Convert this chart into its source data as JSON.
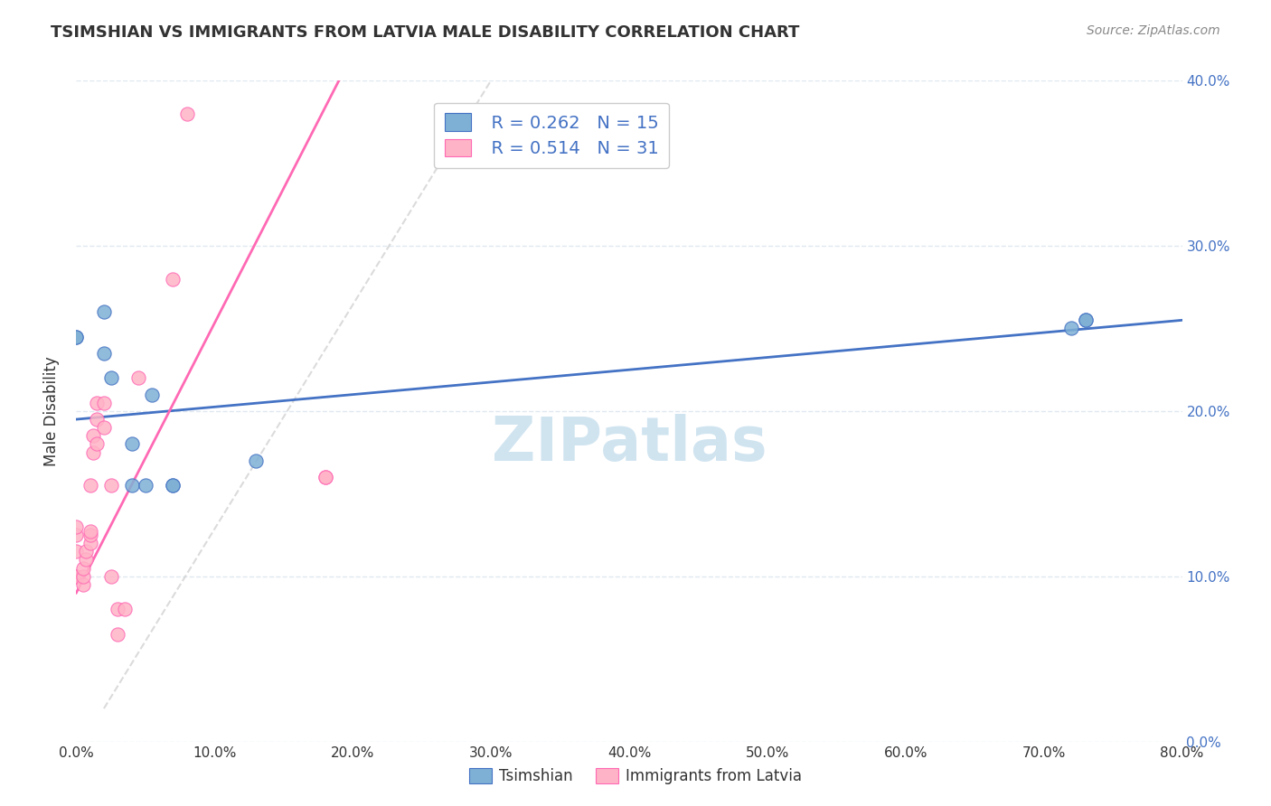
{
  "title": "TSIMSHIAN VS IMMIGRANTS FROM LATVIA MALE DISABILITY CORRELATION CHART",
  "source": "Source: ZipAtlas.com",
  "xlabel": "",
  "ylabel": "Male Disability",
  "xlim": [
    0,
    0.8
  ],
  "ylim": [
    0,
    0.4
  ],
  "xticks": [
    0.0,
    0.1,
    0.2,
    0.3,
    0.4,
    0.5,
    0.6,
    0.7,
    0.8
  ],
  "yticks": [
    0.0,
    0.1,
    0.2,
    0.3,
    0.4
  ],
  "blue_R": 0.262,
  "blue_N": 15,
  "pink_R": 0.514,
  "pink_N": 31,
  "blue_color": "#7EB0D5",
  "pink_color": "#FFB3C6",
  "blue_line_color": "#4472C4",
  "pink_line_color": "#FF69B4",
  "tsimshian_points_x": [
    0.0,
    0.0,
    0.02,
    0.02,
    0.025,
    0.04,
    0.04,
    0.05,
    0.055,
    0.07,
    0.07,
    0.13,
    0.72,
    0.73,
    0.73
  ],
  "tsimshian_points_y": [
    0.245,
    0.245,
    0.235,
    0.26,
    0.22,
    0.18,
    0.155,
    0.155,
    0.21,
    0.155,
    0.155,
    0.17,
    0.25,
    0.255,
    0.255
  ],
  "latvia_points_x": [
    0.0,
    0.0,
    0.0,
    0.0,
    0.0,
    0.005,
    0.005,
    0.005,
    0.007,
    0.007,
    0.01,
    0.01,
    0.01,
    0.01,
    0.012,
    0.012,
    0.015,
    0.015,
    0.015,
    0.02,
    0.02,
    0.025,
    0.025,
    0.03,
    0.03,
    0.035,
    0.045,
    0.07,
    0.08,
    0.18,
    0.18
  ],
  "latvia_points_y": [
    0.1,
    0.1,
    0.115,
    0.125,
    0.13,
    0.095,
    0.1,
    0.105,
    0.11,
    0.115,
    0.12,
    0.125,
    0.127,
    0.155,
    0.175,
    0.185,
    0.18,
    0.195,
    0.205,
    0.205,
    0.19,
    0.1,
    0.155,
    0.065,
    0.08,
    0.08,
    0.22,
    0.28,
    0.38,
    0.16,
    0.16
  ],
  "blue_trend_x": [
    0.0,
    0.8
  ],
  "blue_trend_y": [
    0.195,
    0.255
  ],
  "pink_trend_x": [
    0.0,
    0.19
  ],
  "pink_trend_y": [
    0.09,
    0.4
  ],
  "ref_line_x": [
    0.02,
    0.3
  ],
  "ref_line_y": [
    0.02,
    0.4
  ],
  "background_color": "#FFFFFF",
  "grid_color": "#E0E8F0",
  "watermark_text": "ZIPatlas",
  "watermark_color": "#D0E4F0"
}
